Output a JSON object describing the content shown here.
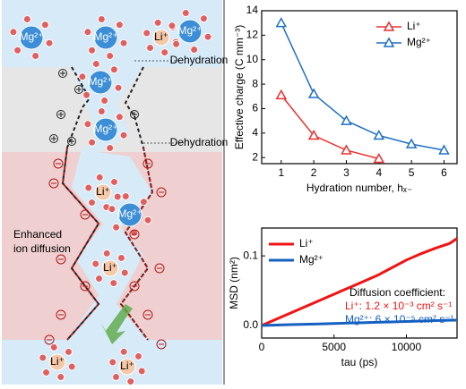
{
  "diagram": {
    "ion_labels": [
      "Mg²⁺",
      "Mg²⁺",
      "Li⁺",
      "Mg²⁺",
      "Mg²⁺",
      "Mg²⁺",
      "Li⁺",
      "Mg²⁺",
      "Li⁺",
      "Li⁺",
      "Li⁺"
    ],
    "dehydration": [
      "Dehydration",
      "Dehydration"
    ],
    "region_label": [
      "Enhanced",
      "ion diffusion"
    ]
  },
  "chart_data": [
    {
      "type": "line",
      "marker": "triangle",
      "x": [
        1,
        2,
        3,
        4,
        5,
        6
      ],
      "series": [
        {
          "name": "Li⁺",
          "color": "#e8312f",
          "values": [
            7.1,
            3.8,
            2.6,
            1.9,
            null,
            null
          ]
        },
        {
          "name": "Mg²⁺",
          "color": "#1f6fc5",
          "values": [
            13,
            7.2,
            5.0,
            3.8,
            3.1,
            2.6
          ]
        }
      ],
      "xlim": [
        0.4,
        6.4
      ],
      "ylim": [
        1.5,
        14
      ],
      "xticks": [
        1,
        2,
        3,
        4,
        5,
        6
      ],
      "yticks": [
        2,
        4,
        6,
        8,
        10,
        12,
        14
      ],
      "xlabel": "Hydration number, hₓ₋",
      "ylabel": "Effective charge (C mm⁻³)",
      "legend": "upper right"
    },
    {
      "type": "line",
      "x": [
        0,
        1000,
        2000,
        3000,
        4000,
        5000,
        6000,
        7000,
        8000,
        9000,
        10000,
        11000,
        12000,
        13000,
        13500
      ],
      "series": [
        {
          "name": "Li⁺",
          "color": "#f01414",
          "values": [
            0,
            0.009,
            0.018,
            0.027,
            0.036,
            0.045,
            0.054,
            0.063,
            0.072,
            0.083,
            0.094,
            0.103,
            0.111,
            0.118,
            0.125
          ]
        },
        {
          "name": "Mg²⁺",
          "color": "#1560c0",
          "values": [
            0,
            0.0006,
            0.0012,
            0.0017,
            0.0023,
            0.0029,
            0.0035,
            0.004,
            0.0046,
            0.0052,
            0.0058,
            0.0064,
            0.007,
            0.0075,
            0.0078
          ]
        }
      ],
      "xlim": [
        0,
        13500
      ],
      "ylim": [
        -0.018,
        0.14
      ],
      "xticks": [
        0,
        5000,
        10000
      ],
      "yticks": [
        {
          "value": 0,
          "label": "0.0"
        },
        {
          "value": 0.1,
          "label": "0.1"
        }
      ],
      "xlabel": "tau (ps)",
      "ylabel": "MSD (nm²)",
      "legend": "upper left",
      "annotations": [
        {
          "text": "Diffusion coefficient:",
          "color": "#000000"
        },
        {
          "text": "Li⁺: 1.2 × 10⁻³ cm² s⁻¹",
          "color": "#f01414"
        },
        {
          "text": "Mg²⁺: 6 × 10⁻⁵ cm² s⁻¹",
          "color": "#1560c0"
        }
      ]
    }
  ]
}
